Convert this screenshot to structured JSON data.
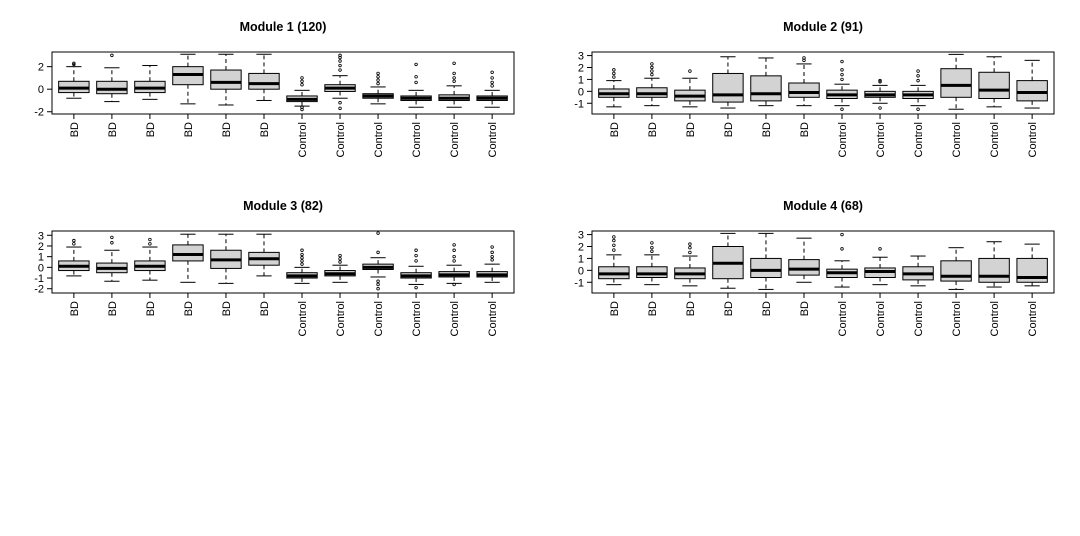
{
  "chart_data": [
    {
      "type": "boxplot",
      "title": "Module 1 (120)",
      "categories": [
        "BD",
        "BD",
        "BD",
        "BD",
        "BD",
        "BD",
        "Control",
        "Control",
        "Control",
        "Control",
        "Control",
        "Control"
      ],
      "ylim": [
        -2.2,
        3.3
      ],
      "yticks": [
        -2,
        0,
        2
      ],
      "boxes": [
        {
          "min": -0.8,
          "q1": -0.3,
          "median": 0.1,
          "q3": 0.7,
          "max": 2.0,
          "outliers": [
            2.2,
            2.3
          ]
        },
        {
          "min": -1.1,
          "q1": -0.4,
          "median": 0.0,
          "q3": 0.7,
          "max": 1.9,
          "outliers": [
            3.0
          ]
        },
        {
          "min": -0.9,
          "q1": -0.3,
          "median": 0.1,
          "q3": 0.7,
          "max": 2.1,
          "outliers": []
        },
        {
          "min": -1.3,
          "q1": 0.4,
          "median": 1.3,
          "q3": 2.0,
          "max": 3.1,
          "outliers": []
        },
        {
          "min": -1.4,
          "q1": 0.0,
          "median": 0.6,
          "q3": 1.7,
          "max": 3.1,
          "outliers": []
        },
        {
          "min": -1.0,
          "q1": 0.0,
          "median": 0.5,
          "q3": 1.4,
          "max": 3.1,
          "outliers": []
        },
        {
          "min": -1.5,
          "q1": -1.1,
          "median": -0.9,
          "q3": -0.6,
          "max": -0.1,
          "outliers": [
            0.4,
            0.7,
            1.0,
            -1.6,
            -1.8
          ]
        },
        {
          "min": -0.8,
          "q1": -0.2,
          "median": 0.1,
          "q3": 0.4,
          "max": 1.2,
          "outliers": [
            1.7,
            2.1,
            2.5,
            2.8,
            3.0,
            -1.2,
            -1.7
          ]
        },
        {
          "min": -1.3,
          "q1": -0.8,
          "median": -0.6,
          "q3": -0.4,
          "max": 0.2,
          "outliers": [
            0.5,
            0.8,
            1.1,
            1.4
          ]
        },
        {
          "min": -1.6,
          "q1": -1.0,
          "median": -0.8,
          "q3": -0.6,
          "max": -0.1,
          "outliers": [
            0.6,
            1.1,
            2.2
          ]
        },
        {
          "min": -1.6,
          "q1": -1.0,
          "median": -0.8,
          "q3": -0.5,
          "max": 0.3,
          "outliers": [
            0.7,
            1.0,
            1.4,
            2.3
          ]
        },
        {
          "min": -1.6,
          "q1": -1.0,
          "median": -0.8,
          "q3": -0.6,
          "max": -0.1,
          "outliers": [
            0.3,
            0.6,
            1.0,
            1.5
          ]
        }
      ]
    },
    {
      "type": "boxplot",
      "title": "Module 2 (91)",
      "categories": [
        "BD",
        "BD",
        "BD",
        "BD",
        "BD",
        "BD",
        "Control",
        "Control",
        "Control",
        "Control",
        "Control",
        "Control"
      ],
      "ylim": [
        -1.9,
        3.3
      ],
      "yticks": [
        -1,
        0,
        1,
        2,
        3
      ],
      "boxes": [
        {
          "min": -1.3,
          "q1": -0.5,
          "median": -0.2,
          "q3": 0.2,
          "max": 0.9,
          "outliers": [
            1.2,
            1.5,
            1.8
          ]
        },
        {
          "min": -1.2,
          "q1": -0.5,
          "median": -0.2,
          "q3": 0.3,
          "max": 1.1,
          "outliers": [
            1.4,
            1.7,
            2.0,
            2.3
          ]
        },
        {
          "min": -1.3,
          "q1": -0.8,
          "median": -0.4,
          "q3": 0.1,
          "max": 1.1,
          "outliers": [
            1.7
          ]
        },
        {
          "min": -1.4,
          "q1": -0.9,
          "median": -0.3,
          "q3": 1.5,
          "max": 2.9,
          "outliers": []
        },
        {
          "min": -1.2,
          "q1": -0.8,
          "median": -0.2,
          "q3": 1.3,
          "max": 2.8,
          "outliers": []
        },
        {
          "min": -1.2,
          "q1": -0.5,
          "median": -0.1,
          "q3": 0.7,
          "max": 2.3,
          "outliers": [
            2.6,
            2.8
          ]
        },
        {
          "min": -1.2,
          "q1": -0.6,
          "median": -0.3,
          "q3": 0.1,
          "max": 0.6,
          "outliers": [
            1.0,
            1.4,
            1.8,
            2.5,
            -1.5
          ]
        },
        {
          "min": -1.0,
          "q1": -0.5,
          "median": -0.3,
          "q3": 0.0,
          "max": 0.5,
          "outliers": [
            0.8,
            0.9,
            -1.4
          ]
        },
        {
          "min": -1.2,
          "q1": -0.6,
          "median": -0.3,
          "q3": 0.0,
          "max": 0.5,
          "outliers": [
            0.9,
            1.3,
            1.7,
            -1.5
          ]
        },
        {
          "min": -1.5,
          "q1": -0.5,
          "median": 0.5,
          "q3": 1.9,
          "max": 3.1,
          "outliers": []
        },
        {
          "min": -1.3,
          "q1": -0.6,
          "median": 0.1,
          "q3": 1.6,
          "max": 2.9,
          "outliers": []
        },
        {
          "min": -1.4,
          "q1": -0.8,
          "median": -0.1,
          "q3": 0.9,
          "max": 2.6,
          "outliers": []
        }
      ]
    },
    {
      "type": "boxplot",
      "title": "Module 3 (82)",
      "categories": [
        "BD",
        "BD",
        "BD",
        "BD",
        "BD",
        "BD",
        "Control",
        "Control",
        "Control",
        "Control",
        "Control",
        "Control"
      ],
      "ylim": [
        -2.4,
        3.4
      ],
      "yticks": [
        -2,
        -1,
        0,
        1,
        2,
        3
      ],
      "boxes": [
        {
          "min": -0.8,
          "q1": -0.3,
          "median": 0.1,
          "q3": 0.6,
          "max": 1.9,
          "outliers": [
            2.2,
            2.5
          ]
        },
        {
          "min": -1.3,
          "q1": -0.5,
          "median": -0.1,
          "q3": 0.4,
          "max": 1.6,
          "outliers": [
            2.3,
            2.8
          ]
        },
        {
          "min": -1.2,
          "q1": -0.3,
          "median": 0.1,
          "q3": 0.6,
          "max": 1.9,
          "outliers": [
            2.2,
            2.6
          ]
        },
        {
          "min": -1.4,
          "q1": 0.6,
          "median": 1.2,
          "q3": 2.1,
          "max": 3.1,
          "outliers": []
        },
        {
          "min": -1.5,
          "q1": -0.1,
          "median": 0.7,
          "q3": 1.6,
          "max": 3.1,
          "outliers": []
        },
        {
          "min": -0.8,
          "q1": 0.2,
          "median": 0.8,
          "q3": 1.4,
          "max": 3.1,
          "outliers": []
        },
        {
          "min": -1.5,
          "q1": -1.0,
          "median": -0.8,
          "q3": -0.5,
          "max": 0.0,
          "outliers": [
            0.3,
            0.6,
            0.9,
            1.2,
            1.6
          ]
        },
        {
          "min": -1.4,
          "q1": -0.8,
          "median": -0.6,
          "q3": -0.3,
          "max": 0.2,
          "outliers": [
            0.5,
            0.8,
            1.1
          ]
        },
        {
          "min": -0.9,
          "q1": -0.2,
          "median": 0.0,
          "q3": 0.3,
          "max": 0.9,
          "outliers": [
            1.4,
            3.2,
            -1.3,
            -1.6,
            -2.0
          ]
        },
        {
          "min": -1.6,
          "q1": -1.0,
          "median": -0.8,
          "q3": -0.5,
          "max": 0.1,
          "outliers": [
            0.6,
            1.1,
            1.6,
            -1.9
          ]
        },
        {
          "min": -1.5,
          "q1": -0.9,
          "median": -0.7,
          "q3": -0.4,
          "max": 0.2,
          "outliers": [
            0.6,
            1.0,
            1.6,
            2.1,
            -1.6
          ]
        },
        {
          "min": -1.4,
          "q1": -0.9,
          "median": -0.7,
          "q3": -0.4,
          "max": 0.3,
          "outliers": [
            0.7,
            1.0,
            1.4,
            1.9
          ]
        }
      ]
    },
    {
      "type": "boxplot",
      "title": "Module 4 (68)",
      "categories": [
        "BD",
        "BD",
        "BD",
        "BD",
        "BD",
        "BD",
        "Control",
        "Control",
        "Control",
        "Control",
        "Control",
        "Control"
      ],
      "ylim": [
        -1.9,
        3.3
      ],
      "yticks": [
        -1,
        0,
        1,
        2,
        3
      ],
      "boxes": [
        {
          "min": -1.2,
          "q1": -0.7,
          "median": -0.3,
          "q3": 0.3,
          "max": 1.3,
          "outliers": [
            1.7,
            2.1,
            2.5,
            2.8
          ]
        },
        {
          "min": -1.2,
          "q1": -0.6,
          "median": -0.3,
          "q3": 0.3,
          "max": 1.3,
          "outliers": [
            1.6,
            1.9,
            2.3
          ]
        },
        {
          "min": -1.3,
          "q1": -0.7,
          "median": -0.3,
          "q3": 0.2,
          "max": 1.2,
          "outliers": [
            1.5,
            1.9,
            2.2
          ]
        },
        {
          "min": -1.5,
          "q1": -0.7,
          "median": 0.6,
          "q3": 2.0,
          "max": 3.1,
          "outliers": []
        },
        {
          "min": -1.6,
          "q1": -0.6,
          "median": 0.0,
          "q3": 1.0,
          "max": 3.1,
          "outliers": []
        },
        {
          "min": -1.0,
          "q1": -0.4,
          "median": 0.1,
          "q3": 0.9,
          "max": 2.7,
          "outliers": []
        },
        {
          "min": -1.4,
          "q1": -0.6,
          "median": -0.2,
          "q3": 0.1,
          "max": 0.8,
          "outliers": [
            1.8,
            3.0
          ]
        },
        {
          "min": -1.2,
          "q1": -0.6,
          "median": -0.1,
          "q3": 0.2,
          "max": 1.1,
          "outliers": [
            1.8
          ]
        },
        {
          "min": -1.3,
          "q1": -0.8,
          "median": -0.3,
          "q3": 0.3,
          "max": 1.2,
          "outliers": []
        },
        {
          "min": -1.6,
          "q1": -0.9,
          "median": -0.5,
          "q3": 0.8,
          "max": 1.9,
          "outliers": []
        },
        {
          "min": -1.4,
          "q1": -1.0,
          "median": -0.5,
          "q3": 1.0,
          "max": 2.4,
          "outliers": []
        },
        {
          "min": -1.3,
          "q1": -1.0,
          "median": -0.6,
          "q3": 1.0,
          "max": 2.2,
          "outliers": []
        }
      ]
    }
  ]
}
